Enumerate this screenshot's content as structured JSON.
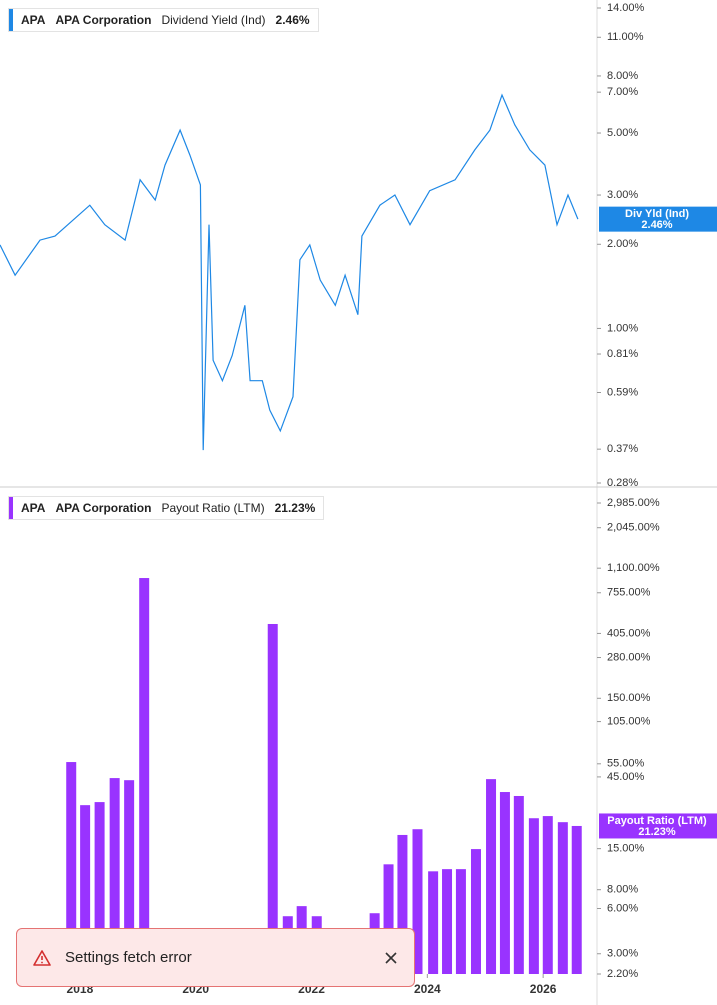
{
  "chart_data": [
    {
      "type": "line",
      "legend": {
        "ticker": "APA",
        "company": "APA Corporation",
        "metric": "Dividend Yield (Ind)",
        "value": "2.46%"
      },
      "badge": {
        "name": "Div Yld (Ind)",
        "value": "2.46%"
      },
      "log_scale": true,
      "xlim": [
        2016.62,
        2026.93
      ],
      "ylim": [
        0.28,
        14
      ],
      "yticks": [
        {
          "value": 14,
          "label": "14.00%"
        },
        {
          "value": 11,
          "label": "11.00%"
        },
        {
          "value": 8,
          "label": "8.00%"
        },
        {
          "value": 7,
          "label": "7.00%"
        },
        {
          "value": 5,
          "label": "5.00%"
        },
        {
          "value": 3,
          "label": "3.00%"
        },
        {
          "value": 2,
          "label": "2.00%"
        },
        {
          "value": 1,
          "label": "1.00%"
        },
        {
          "value": 0.81,
          "label": "0.81%"
        },
        {
          "value": 0.59,
          "label": "0.59%"
        },
        {
          "value": 0.37,
          "label": "0.37%"
        },
        {
          "value": 0.28,
          "label": "0.28%"
        }
      ],
      "x": [
        2016.62,
        2016.88,
        2017.31,
        2017.57,
        2018.17,
        2018.43,
        2018.78,
        2019.04,
        2019.3,
        2019.47,
        2019.73,
        2019.9,
        2020.08,
        2020.13,
        2020.23,
        2020.3,
        2020.46,
        2020.63,
        2020.85,
        2020.94,
        2021.15,
        2021.28,
        2021.46,
        2021.68,
        2021.8,
        2021.97,
        2022.15,
        2022.41,
        2022.58,
        2022.8,
        2022.87,
        2023.18,
        2023.44,
        2023.7,
        2024.04,
        2024.48,
        2024.82,
        2025.08,
        2025.29,
        2025.51,
        2025.77,
        2026.03,
        2026.24,
        2026.43,
        2026.6
      ],
      "series": [
        {
          "name": "Dividend Yield (Ind)",
          "color": "#1e88e5",
          "values": [
            1.99,
            1.55,
            2.07,
            2.14,
            2.76,
            2.35,
            2.07,
            3.4,
            2.88,
            3.84,
            5.12,
            4.17,
            3.26,
            0.367,
            2.35,
            0.77,
            0.65,
            0.8,
            1.21,
            0.65,
            0.65,
            0.51,
            0.43,
            0.57,
            1.76,
            1.99,
            1.49,
            1.21,
            1.55,
            1.12,
            2.14,
            2.76,
            3.0,
            2.35,
            3.11,
            3.4,
            4.35,
            5.12,
            6.84,
            5.35,
            4.35,
            3.84,
            2.35,
            3.0,
            2.46
          ]
        }
      ]
    },
    {
      "type": "bar",
      "legend": {
        "ticker": "APA",
        "company": "APA Corporation",
        "metric": "Payout Ratio (LTM)",
        "value": "21.23%"
      },
      "badge": {
        "name": "Payout Ratio (LTM)",
        "value": "21.23%"
      },
      "log_scale": true,
      "xlim": [
        2016.62,
        2026.93
      ],
      "xticks": [
        2018,
        2020,
        2022,
        2024,
        2026
      ],
      "ylim": [
        2.2,
        2985
      ],
      "yticks": [
        {
          "value": 2985,
          "label": "2,985.00%"
        },
        {
          "value": 2045,
          "label": "2,045.00%"
        },
        {
          "value": 1100,
          "label": "1,100.00%"
        },
        {
          "value": 755,
          "label": "755.00%"
        },
        {
          "value": 405,
          "label": "405.00%"
        },
        {
          "value": 280,
          "label": "280.00%"
        },
        {
          "value": 150,
          "label": "150.00%"
        },
        {
          "value": 105,
          "label": "105.00%"
        },
        {
          "value": 55,
          "label": "55.00%"
        },
        {
          "value": 45,
          "label": "45.00%"
        },
        {
          "value": 15,
          "label": "15.00%"
        },
        {
          "value": 8,
          "label": "8.00%"
        },
        {
          "value": 6,
          "label": "6.00%"
        },
        {
          "value": 3,
          "label": "3.00%"
        },
        {
          "value": 2.2,
          "label": "2.20%"
        }
      ],
      "x": [
        2017.85,
        2018.09,
        2018.34,
        2018.6,
        2018.85,
        2019.11,
        2021.33,
        2021.59,
        2021.83,
        2022.09,
        2023.09,
        2023.33,
        2023.57,
        2023.83,
        2024.1,
        2024.34,
        2024.58,
        2024.84,
        2025.1,
        2025.34,
        2025.58,
        2025.84,
        2026.08,
        2026.34,
        2026.58
      ],
      "series": [
        {
          "name": "Payout Ratio (LTM)",
          "color": "#9933ff",
          "values": [
            56.5,
            29.2,
            30.6,
            44.2,
            42.8,
            946,
            468,
            5.33,
            6.22,
            5.33,
            5.58,
            11.8,
            18.5,
            20.2,
            10.6,
            10.96,
            10.96,
            14.9,
            43.5,
            35.7,
            33.6,
            23.9,
            24.7,
            22.5,
            21.23
          ]
        }
      ]
    }
  ],
  "toast": {
    "message": "Settings fetch error"
  }
}
